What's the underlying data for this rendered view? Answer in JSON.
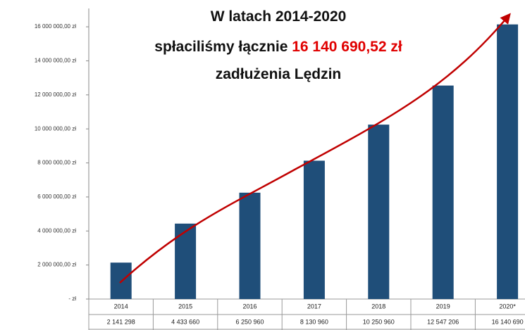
{
  "chart_data": {
    "type": "bar",
    "title": [
      [
        "W latach 2014-2020"
      ],
      [
        "spłaciliśmy łącznie ",
        "16 140 690,52 zł"
      ],
      [
        "zadłużenia Lędzin"
      ]
    ],
    "categories": [
      "2014",
      "2015",
      "2016",
      "2017",
      "2018",
      "2019",
      "2020*"
    ],
    "values": [
      2141298,
      4433660,
      6250960,
      8130960,
      10250960,
      12547206,
      16140690
    ],
    "value_labels": [
      "2 141 298",
      "4 433 660",
      "6 250 960",
      "8 130 960",
      "10 250 960",
      "12 547 206",
      "16 140 690"
    ],
    "color": "#1f4e79",
    "ylim": [
      0,
      16500000
    ],
    "yticks": [
      {
        "value": 0,
        "label": "-   zł"
      },
      {
        "value": 2000000,
        "label": "2 000 000,00 zł"
      },
      {
        "value": 4000000,
        "label": "4 000 000,00 zł"
      },
      {
        "value": 6000000,
        "label": "6 000 000,00 zł"
      },
      {
        "value": 8000000,
        "label": "8 000 000,00 zł"
      },
      {
        "value": 10000000,
        "label": "10 000 000,00 zł"
      },
      {
        "value": 12000000,
        "label": "12 000 000,00 zł"
      },
      {
        "value": 14000000,
        "label": "14 000 000,00 zł"
      },
      {
        "value": 16000000,
        "label": "16 000 000,00 zł"
      }
    ]
  }
}
